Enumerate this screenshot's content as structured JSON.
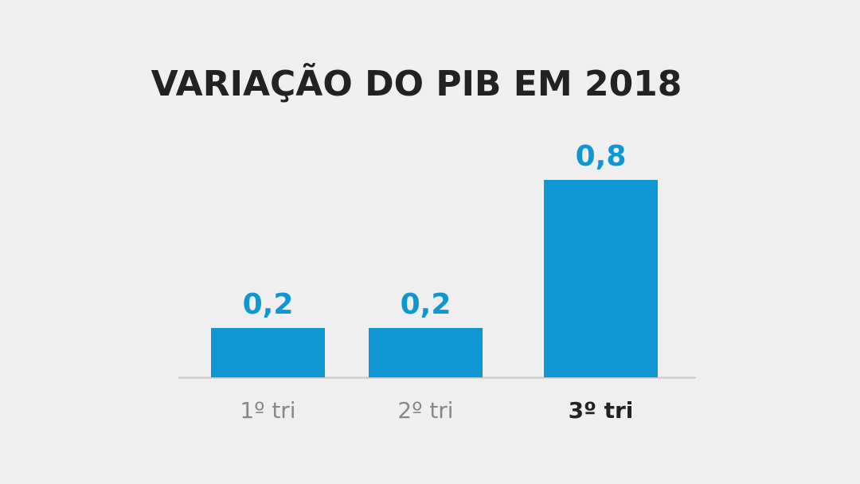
{
  "chart_data": {
    "type": "bar",
    "title": "VARIAÇÃO DO PIB EM 2018",
    "categories": [
      "1º tri",
      "2º tri",
      "3º tri"
    ],
    "values": [
      0.2,
      0.2,
      0.8
    ],
    "value_labels": [
      "0,2",
      "0,2",
      "0,8"
    ],
    "color": "#0f97d3"
  }
}
